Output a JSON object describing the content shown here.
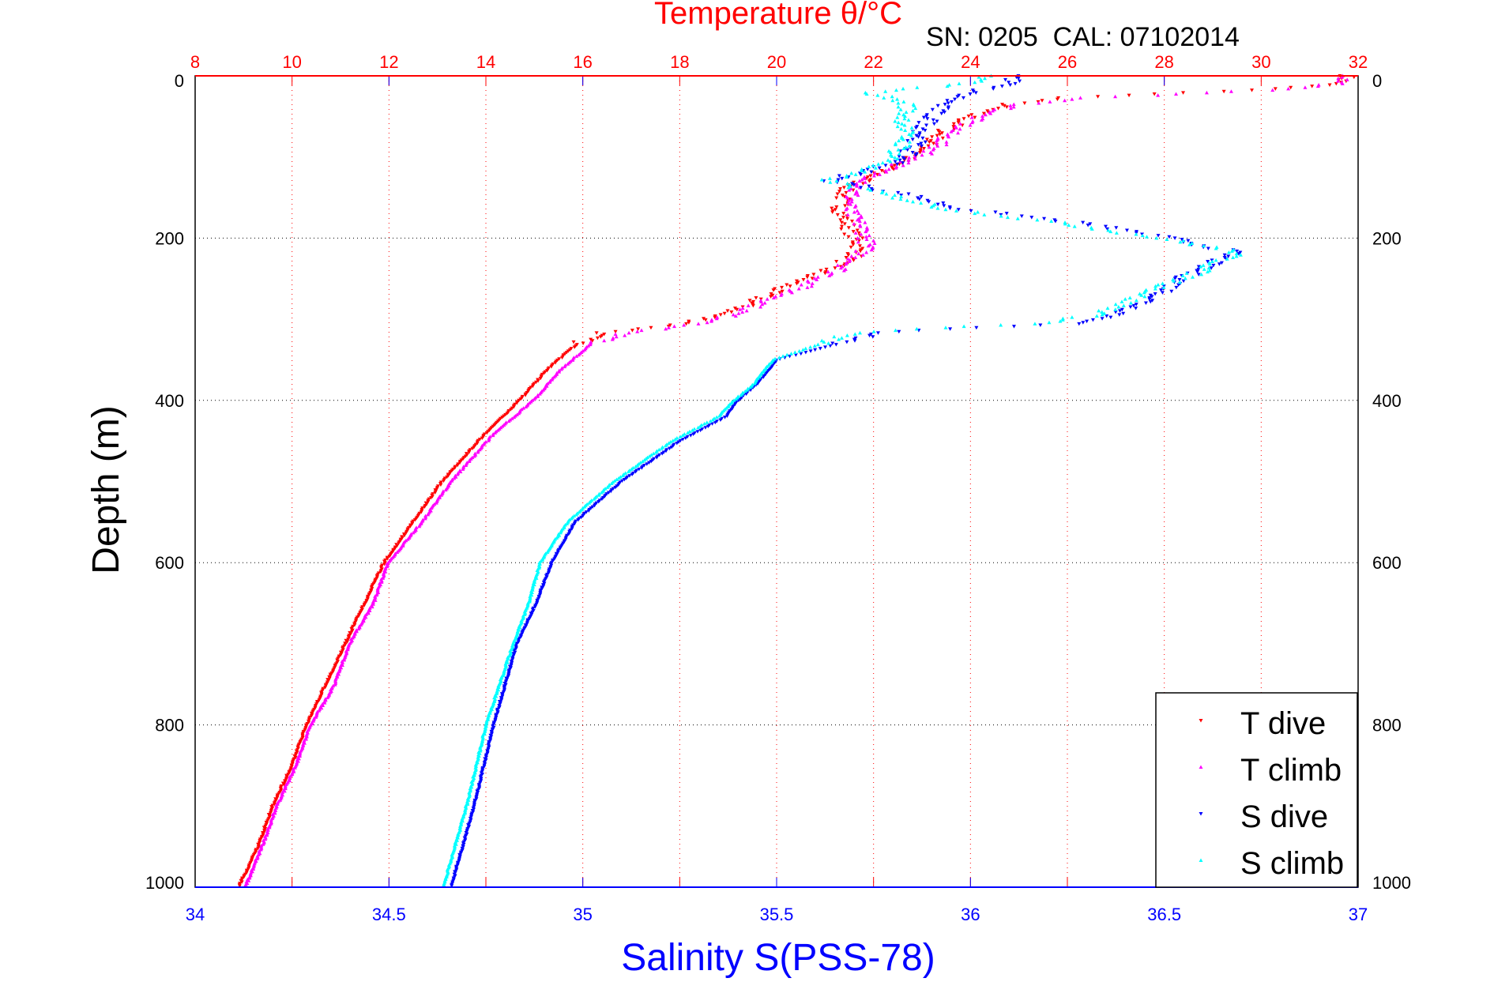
{
  "chart_data": {
    "type": "scatter",
    "title": "Temperature θ/°C",
    "subtitle": "SN: 0205  CAL: 07102014",
    "xlabel": "Salinity S(PSS-78)",
    "ylabel": "Depth (m)",
    "ylim": [
      0,
      1000
    ],
    "yticks": [
      "0",
      "200",
      "400",
      "600",
      "800",
      "1000"
    ],
    "temp_axis": {
      "lim": [
        8,
        32
      ],
      "ticks": [
        "8",
        "10",
        "12",
        "14",
        "16",
        "18",
        "20",
        "22",
        "24",
        "26",
        "28",
        "30",
        "32"
      ],
      "color": "#ff0000"
    },
    "sal_axis": {
      "lim": [
        34,
        37
      ],
      "ticks": [
        "34",
        "34.5",
        "35",
        "35.5",
        "36",
        "36.5",
        "37"
      ],
      "color": "#0000ff"
    },
    "grid": true,
    "legend_position": "bottom-right",
    "series": [
      {
        "name": "T dive",
        "axis": "temp",
        "marker": "down",
        "color": "#ff0000",
        "offset": 0,
        "profile": [
          [
            0,
            31.8
          ],
          [
            10,
            31.6
          ],
          [
            17,
            30
          ],
          [
            22,
            28
          ],
          [
            27,
            26
          ],
          [
            35,
            24.8
          ],
          [
            47,
            24.1
          ],
          [
            70,
            23.4
          ],
          [
            94,
            23.0
          ],
          [
            117,
            22.2
          ],
          [
            141,
            21.4
          ],
          [
            165,
            21.3
          ],
          [
            188,
            21.5
          ],
          [
            210,
            21.7
          ],
          [
            223,
            21.6
          ],
          [
            240,
            21.0
          ],
          [
            264,
            20.0
          ],
          [
            288,
            19.2
          ],
          [
            305,
            18.2
          ],
          [
            311,
            17.4
          ],
          [
            317,
            16.4
          ],
          [
            330,
            15.9
          ],
          [
            360,
            15.3
          ],
          [
            400,
            14.7
          ],
          [
            440,
            14.0
          ],
          [
            500,
            13.1
          ],
          [
            550,
            12.5
          ],
          [
            600,
            11.9
          ],
          [
            650,
            11.5
          ],
          [
            700,
            11.1
          ],
          [
            750,
            10.7
          ],
          [
            800,
            10.3
          ],
          [
            850,
            10.0
          ],
          [
            900,
            9.6
          ],
          [
            950,
            9.3
          ],
          [
            1000,
            8.9
          ]
        ]
      },
      {
        "name": "T climb",
        "axis": "temp",
        "marker": "up",
        "color": "#ff00ff",
        "offset": 0.08,
        "profile": [
          [
            0,
            31.7
          ],
          [
            10,
            31.5
          ],
          [
            17,
            30.2
          ],
          [
            22,
            28.5
          ],
          [
            27,
            26.3
          ],
          [
            35,
            25.0
          ],
          [
            47,
            24.2
          ],
          [
            70,
            23.5
          ],
          [
            94,
            23.1
          ],
          [
            117,
            22.1
          ],
          [
            141,
            21.5
          ],
          [
            165,
            21.4
          ],
          [
            188,
            21.7
          ],
          [
            210,
            21.8
          ],
          [
            223,
            21.6
          ],
          [
            240,
            21.2
          ],
          [
            264,
            20.3
          ],
          [
            288,
            19.3
          ],
          [
            305,
            18.5
          ],
          [
            311,
            17.6
          ],
          [
            317,
            16.8
          ],
          [
            330,
            16.1
          ],
          [
            360,
            15.5
          ],
          [
            400,
            14.9
          ],
          [
            440,
            14.1
          ],
          [
            500,
            13.2
          ],
          [
            550,
            12.6
          ],
          [
            600,
            11.9
          ],
          [
            650,
            11.6
          ],
          [
            700,
            11.1
          ],
          [
            750,
            10.8
          ],
          [
            800,
            10.3
          ],
          [
            850,
            10.0
          ],
          [
            900,
            9.6
          ],
          [
            950,
            9.3
          ],
          [
            1000,
            8.95
          ]
        ]
      },
      {
        "name": "S dive",
        "axis": "sal",
        "marker": "down",
        "color": "#0000ff",
        "offset": 0,
        "profile": [
          [
            0,
            36.12
          ],
          [
            10,
            36.1
          ],
          [
            20,
            36.0
          ],
          [
            35,
            35.93
          ],
          [
            50,
            35.9
          ],
          [
            82,
            35.86
          ],
          [
            106,
            35.82
          ],
          [
            129,
            35.64
          ],
          [
            147,
            35.84
          ],
          [
            164,
            35.97
          ],
          [
            182,
            36.29
          ],
          [
            200,
            36.51
          ],
          [
            217,
            36.68
          ],
          [
            246,
            36.56
          ],
          [
            270,
            36.49
          ],
          [
            293,
            36.39
          ],
          [
            305,
            36.3
          ],
          [
            311,
            35.97
          ],
          [
            317,
            35.77
          ],
          [
            329,
            35.67
          ],
          [
            350,
            35.5
          ],
          [
            380,
            35.45
          ],
          [
            400,
            35.4
          ],
          [
            420,
            35.37
          ],
          [
            450,
            35.25
          ],
          [
            500,
            35.1
          ],
          [
            550,
            34.98
          ],
          [
            600,
            34.92
          ],
          [
            650,
            34.88
          ],
          [
            700,
            34.83
          ],
          [
            800,
            34.77
          ],
          [
            900,
            34.72
          ],
          [
            1000,
            34.66
          ]
        ]
      },
      {
        "name": "S climb",
        "axis": "sal",
        "marker": "up",
        "color": "#00ffff",
        "offset": -0.01,
        "profile": [
          [
            0,
            36.05
          ],
          [
            10,
            36.0
          ],
          [
            20,
            35.75
          ],
          [
            35,
            35.85
          ],
          [
            50,
            35.84
          ],
          [
            82,
            35.84
          ],
          [
            106,
            35.8
          ],
          [
            129,
            35.64
          ],
          [
            147,
            35.8
          ],
          [
            164,
            35.95
          ],
          [
            182,
            36.25
          ],
          [
            200,
            36.5
          ],
          [
            217,
            36.7
          ],
          [
            246,
            36.58
          ],
          [
            270,
            36.45
          ],
          [
            293,
            36.35
          ],
          [
            305,
            36.2
          ],
          [
            311,
            35.9
          ],
          [
            317,
            35.7
          ],
          [
            329,
            35.63
          ],
          [
            350,
            35.5
          ],
          [
            380,
            35.45
          ],
          [
            400,
            35.4
          ],
          [
            420,
            35.36
          ],
          [
            450,
            35.24
          ],
          [
            500,
            35.09
          ],
          [
            550,
            34.97
          ],
          [
            600,
            34.9
          ],
          [
            650,
            34.87
          ],
          [
            700,
            34.83
          ],
          [
            800,
            34.76
          ],
          [
            900,
            34.71
          ],
          [
            1000,
            34.65
          ]
        ]
      }
    ]
  }
}
